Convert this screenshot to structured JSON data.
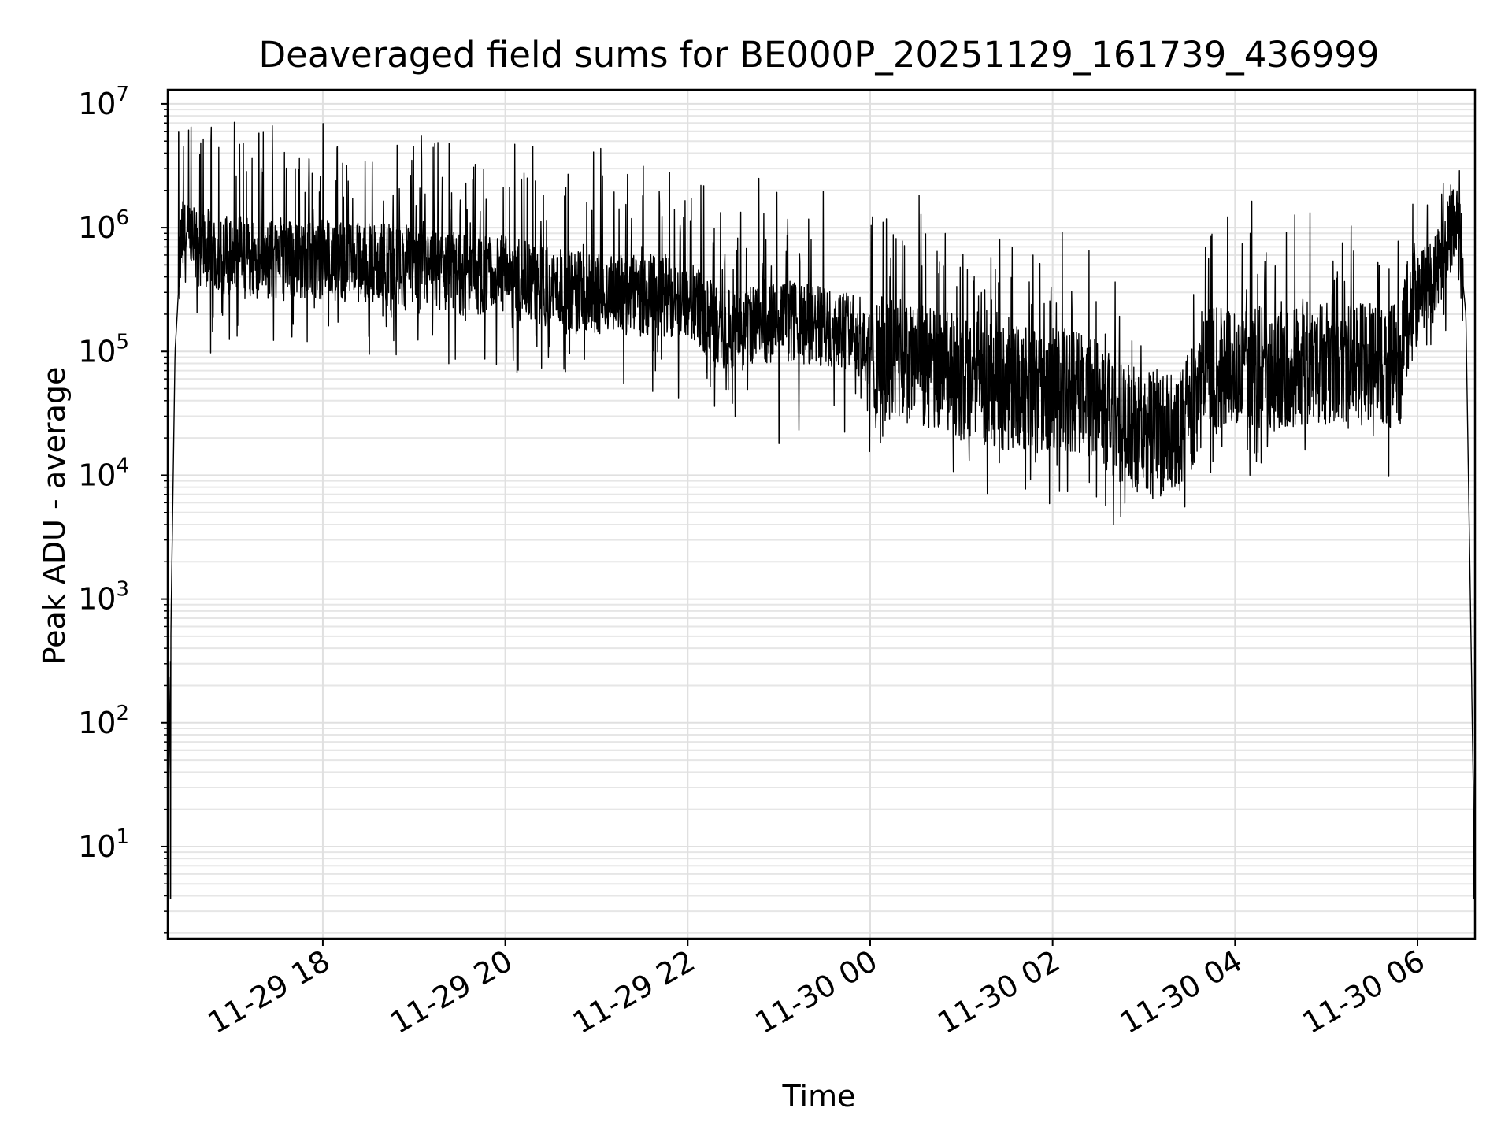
{
  "chart_data": {
    "type": "line",
    "title": "Deaveraged field sums for BE000P_20251129_161739_436999",
    "xlabel": "Time",
    "ylabel": "Peak ADU - average",
    "yscale": "log",
    "ylim": [
      1.8,
      13000000
    ],
    "xlim_hours": [
      16.3,
      30.63
    ],
    "grid": true,
    "line_color": "#000000",
    "x_ticks": [
      {
        "label": "11-29 18",
        "hour": 18
      },
      {
        "label": "11-29 20",
        "hour": 20
      },
      {
        "label": "11-29 22",
        "hour": 22
      },
      {
        "label": "11-30 00",
        "hour": 24
      },
      {
        "label": "11-30 02",
        "hour": 26
      },
      {
        "label": "11-30 04",
        "hour": 28
      },
      {
        "label": "11-30 06",
        "hour": 30
      }
    ],
    "y_ticks": [
      {
        "base": "10",
        "exp": "1",
        "value": 10
      },
      {
        "base": "10",
        "exp": "2",
        "value": 100
      },
      {
        "base": "10",
        "exp": "3",
        "value": 1000
      },
      {
        "base": "10",
        "exp": "4",
        "value": 10000
      },
      {
        "base": "10",
        "exp": "5",
        "value": 100000
      },
      {
        "base": "10",
        "exp": "6",
        "value": 1000000
      },
      {
        "base": "10",
        "exp": "7",
        "value": 10000000
      }
    ],
    "series": [
      {
        "name": "Deaveraged field sum",
        "baseline_hours": [
          16.3,
          16.38,
          16.45,
          16.6,
          17.0,
          17.5,
          18.0,
          18.5,
          19.0,
          19.5,
          20.0,
          20.5,
          21.0,
          21.5,
          22.0,
          22.3,
          22.6,
          23.0,
          23.4,
          23.8,
          24.1,
          24.6,
          25.0,
          25.5,
          26.0,
          26.4,
          26.8,
          27.1,
          27.4,
          27.7,
          28.0,
          28.5,
          29.0,
          29.5,
          29.8,
          29.9,
          30.1,
          30.3,
          30.42,
          30.53,
          30.63
        ],
        "baseline_values": [
          10,
          100000,
          800000,
          700000,
          600000,
          550000,
          550000,
          520000,
          480000,
          420000,
          400000,
          330000,
          300000,
          280000,
          280000,
          160000,
          150000,
          180000,
          160000,
          150000,
          90000,
          75000,
          60000,
          50000,
          50000,
          45000,
          25000,
          20000,
          22000,
          70000,
          75000,
          75000,
          80000,
          80000,
          75000,
          200000,
          350000,
          600000,
          1400000,
          200000,
          4
        ],
        "peaks": [
          {
            "hour": 16.42,
            "value": 6000000
          },
          {
            "hour": 16.47,
            "value": 4500000
          },
          {
            "hour": 17.3,
            "value": 5800000
          },
          {
            "hour": 17.85,
            "value": 3600000
          },
          {
            "hour": 20.65,
            "value": 1800000
          },
          {
            "hour": 21.8,
            "value": 2800000
          },
          {
            "hour": 30.4,
            "value": 1500000
          }
        ],
        "dips": [
          {
            "hour": 16.33,
            "value": 3.8
          },
          {
            "hour": 23.0,
            "value": 18000
          },
          {
            "hour": 26.6,
            "value": 13000
          },
          {
            "hour": 27.15,
            "value": 9500
          },
          {
            "hour": 30.62,
            "value": 3.8
          }
        ]
      }
    ]
  }
}
